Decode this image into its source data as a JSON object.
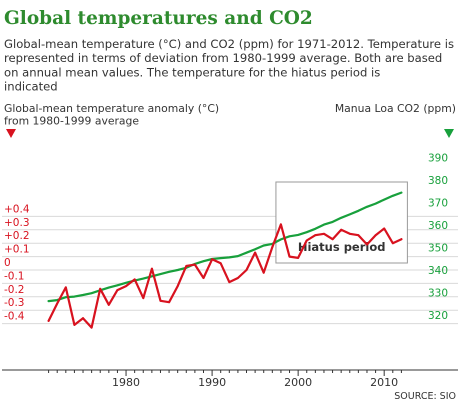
{
  "chart_data": {
    "type": "line",
    "title": "Global temperatures and CO2",
    "subtitle": "Global-mean temperature (°C) and CO2 (ppm) for 1971-2012. Temperature is represented in terms of deviation from 1980-1999 average. Both are based on annual mean values. The temperature for the hiatus period is indicated",
    "left_axis_title": "Global-mean temperature anomaly (°C) from 1980-1999 average",
    "right_axis_title": "Manua Loa CO2 (ppm)",
    "source": "SOURCE: SIO",
    "annotation": "Hiatus period",
    "x_tick_labels": [
      "1980",
      "1990",
      "2000",
      "2010"
    ],
    "x_ticks": [
      1980,
      1990,
      2000,
      2010
    ],
    "xlim": [
      1970,
      2013
    ],
    "left_tick_labels": [
      "+0.4",
      "+0.3",
      "+0.2",
      "+0.1",
      "0",
      "-0.1",
      "-0.2",
      "-0.3",
      "-0.4"
    ],
    "left_ticks": [
      0.4,
      0.3,
      0.2,
      0.1,
      0,
      -0.1,
      -0.2,
      -0.3,
      -0.4
    ],
    "right_tick_labels": [
      "390",
      "380",
      "370",
      "360",
      "350",
      "340",
      "330",
      "320"
    ],
    "right_ticks": [
      390,
      380,
      370,
      360,
      350,
      340,
      330,
      320
    ],
    "hiatus_range": [
      1998,
      2012
    ],
    "colors": {
      "title": "#2e8b2e",
      "temperature": "#d8121f",
      "co2": "#18a03c",
      "text": "#333333",
      "grid": "#d9d9d9"
    },
    "series": [
      {
        "axis": "left",
        "x": [
          1971,
          1972,
          1973,
          1974,
          1975,
          1976,
          1977,
          1978,
          1979,
          1980,
          1981,
          1982,
          1983,
          1984,
          1985,
          1986,
          1987,
          1988,
          1989,
          1990,
          1991,
          1992,
          1993,
          1994,
          1995,
          1996,
          1997,
          1998,
          1999,
          2000,
          2001,
          2002,
          2003,
          2004,
          2005,
          2006,
          2007,
          2008,
          2009,
          2010,
          2011,
          2012
        ],
        "values": [
          -0.38,
          -0.25,
          -0.13,
          -0.41,
          -0.36,
          -0.43,
          -0.14,
          -0.26,
          -0.15,
          -0.12,
          -0.07,
          -0.21,
          0.01,
          -0.23,
          -0.24,
          -0.12,
          0.03,
          0.04,
          -0.06,
          0.08,
          0.05,
          -0.09,
          -0.06,
          0.0,
          0.13,
          -0.02,
          0.17,
          0.34,
          0.1,
          0.09,
          0.22,
          0.26,
          0.27,
          0.23,
          0.3,
          0.27,
          0.26,
          0.19,
          0.26,
          0.31,
          0.2,
          0.23
        ]
      },
      {
        "axis": "right",
        "x": [
          1971,
          1972,
          1973,
          1974,
          1975,
          1976,
          1977,
          1978,
          1979,
          1980,
          1981,
          1982,
          1983,
          1984,
          1985,
          1986,
          1987,
          1988,
          1989,
          1990,
          1991,
          1992,
          1993,
          1994,
          1995,
          1996,
          1997,
          1998,
          1999,
          2000,
          2001,
          2002,
          2003,
          2004,
          2005,
          2006,
          2007,
          2008,
          2009,
          2010,
          2011,
          2012
        ],
        "values": [
          326.2,
          326.6,
          327.9,
          328.2,
          328.9,
          329.7,
          331.0,
          332.2,
          333.2,
          334.3,
          335.3,
          336.2,
          337.2,
          338.2,
          339.2,
          340.0,
          341.0,
          342.7,
          343.9,
          344.9,
          345.3,
          345.6,
          346.2,
          347.7,
          349.2,
          350.9,
          351.6,
          353.6,
          355.0,
          355.6,
          356.8,
          358.3,
          360.2,
          361.4,
          363.2,
          364.7,
          366.3,
          368.1,
          369.5,
          371.3,
          373.0,
          374.4
        ]
      }
    ]
  }
}
